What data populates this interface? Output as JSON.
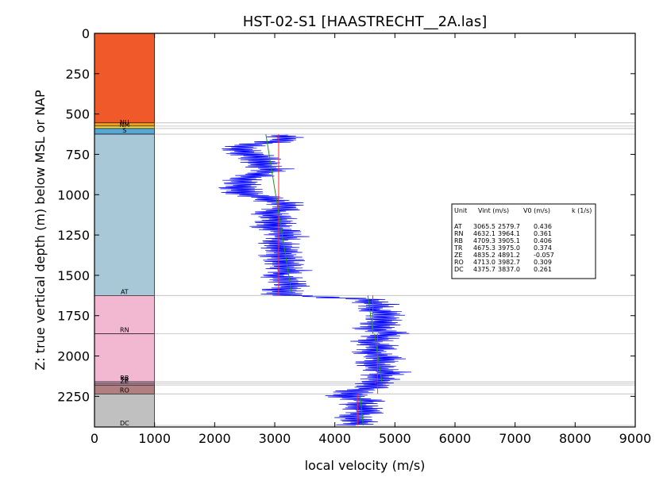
{
  "chart_data": {
    "type": "line",
    "title": "HST-02-S1 [HAASTRECHT__2A.las]",
    "xlabel": "local velocity (m/s)",
    "ylabel": "Z: true vertical depth (m) below MSL or NAP",
    "xlim": [
      0,
      9000
    ],
    "ylim": [
      2440,
      0
    ],
    "x_ticks": [
      "0",
      "1000",
      "2000",
      "3000",
      "4000",
      "5000",
      "6000",
      "7000",
      "8000",
      "9000"
    ],
    "y_ticks": [
      "0",
      "250",
      "500",
      "750",
      "1000",
      "1250",
      "1500",
      "1750",
      "2000",
      "2250"
    ],
    "grid": false,
    "column": {
      "x_range": [
        0,
        1000
      ],
      "units": [
        {
          "label": "",
          "top": 0,
          "bottom": 555,
          "color": "#f05a2a"
        },
        {
          "label": "NU",
          "top": 555,
          "bottom": 575,
          "color": "#f0a020"
        },
        {
          "label": "NM",
          "top": 575,
          "bottom": 590,
          "color": "#f4e04a"
        },
        {
          "label": "S",
          "top": 590,
          "bottom": 625,
          "color": "#5aa7d6"
        },
        {
          "label": "AT",
          "top": 625,
          "bottom": 1625,
          "color": "#a8c8d8"
        },
        {
          "label": "RN",
          "top": 1625,
          "bottom": 1862,
          "color": "#f2b8d2"
        },
        {
          "label": "RB",
          "top": 1862,
          "bottom": 2160,
          "color": "#f2b8d2"
        },
        {
          "label": "TR",
          "top": 2160,
          "bottom": 2170,
          "color": "#f2b8d2"
        },
        {
          "label": "ZE",
          "top": 2170,
          "bottom": 2180,
          "color": "#d0a9c8"
        },
        {
          "label": "RO",
          "top": 2180,
          "bottom": 2235,
          "color": "#b08080"
        },
        {
          "label": "DC",
          "top": 2235,
          "bottom": 2440,
          "color": "#c0c0c0"
        }
      ]
    },
    "boundaries": [
      555,
      575,
      590,
      625,
      1625,
      1862,
      2160,
      2170,
      2180,
      2235,
      2430
    ],
    "log_series": {
      "name": "local velocity",
      "color": "#0000ff",
      "depth": [
        630,
        660,
        690,
        720,
        750,
        780,
        810,
        840,
        870,
        900,
        930,
        960,
        990,
        1020,
        1050,
        1080,
        1110,
        1140,
        1170,
        1200,
        1230,
        1260,
        1290,
        1320,
        1350,
        1380,
        1410,
        1440,
        1470,
        1500,
        1530,
        1560,
        1590,
        1620,
        1650,
        1680,
        1710,
        1740,
        1770,
        1800,
        1830,
        1860,
        1890,
        1920,
        1950,
        1980,
        2010,
        2040,
        2070,
        2100,
        2130,
        2160,
        2190,
        2220,
        2250,
        2280,
        2310,
        2340,
        2370,
        2400,
        2430
      ],
      "velocity": [
        3100,
        3200,
        2600,
        2400,
        2550,
        2800,
        2700,
        2950,
        2750,
        2500,
        2450,
        2400,
        2500,
        2800,
        3100,
        3200,
        2900,
        3050,
        3000,
        2950,
        3100,
        3200,
        3000,
        3100,
        3150,
        3050,
        3200,
        3100,
        3250,
        3000,
        3200,
        3300,
        3100,
        3150,
        4500,
        4700,
        4600,
        4900,
        4800,
        4750,
        4650,
        4900,
        4700,
        4600,
        4800,
        4550,
        4850,
        4700,
        4650,
        4900,
        4750,
        4700,
        4650,
        4300,
        4200,
        4500,
        4350,
        4600,
        4300,
        4400,
        4350
      ]
    },
    "vint_segments": [
      {
        "unit": "AT",
        "top": 625,
        "bottom": 1625,
        "vint": 3065.5
      },
      {
        "unit": "RN",
        "top": 1625,
        "bottom": 1862,
        "vint": 4632.1
      },
      {
        "unit": "RB",
        "top": 1862,
        "bottom": 2160,
        "vint": 4709.3
      },
      {
        "unit": "TR",
        "top": 2160,
        "bottom": 2170,
        "vint": 4675.3
      },
      {
        "unit": "ZE",
        "top": 2170,
        "bottom": 2180,
        "vint": 4835.2
      },
      {
        "unit": "RO",
        "top": 2180,
        "bottom": 2235,
        "vint": 4713.0
      },
      {
        "unit": "DC",
        "top": 2235,
        "bottom": 2430,
        "vint": 4375.7
      }
    ],
    "v0k_segments": [
      {
        "unit": "AT",
        "top": 625,
        "bottom": 1625,
        "v0": 2579.7,
        "k": 0.436
      },
      {
        "unit": "RN",
        "top": 1625,
        "bottom": 1862,
        "v0": 3964.1,
        "k": 0.361
      },
      {
        "unit": "RB",
        "top": 1862,
        "bottom": 2160,
        "v0": 3905.1,
        "k": 0.406
      },
      {
        "unit": "DC",
        "top": 2235,
        "bottom": 2430,
        "v0": 3837.0,
        "k": 0.261
      }
    ],
    "table": {
      "headers": [
        "Unit",
        "Vint (m/s)",
        "V0 (m/s)",
        "k (1/s)"
      ],
      "rows": [
        [
          "AT",
          "3065.5",
          "2579.7",
          "0.436"
        ],
        [
          "RN",
          "4632.1",
          "3964.1",
          "0.361"
        ],
        [
          "RB",
          "4709.3",
          "3905.1",
          "0.406"
        ],
        [
          "TR",
          "4675.3",
          "3975.0",
          "0.374"
        ],
        [
          "ZE",
          "4835.2",
          "4891.2",
          "-0.057"
        ],
        [
          "RO",
          "4713.0",
          "3982.7",
          "0.309"
        ],
        [
          "DC",
          "4375.7",
          "3837.0",
          "0.261"
        ]
      ]
    }
  }
}
